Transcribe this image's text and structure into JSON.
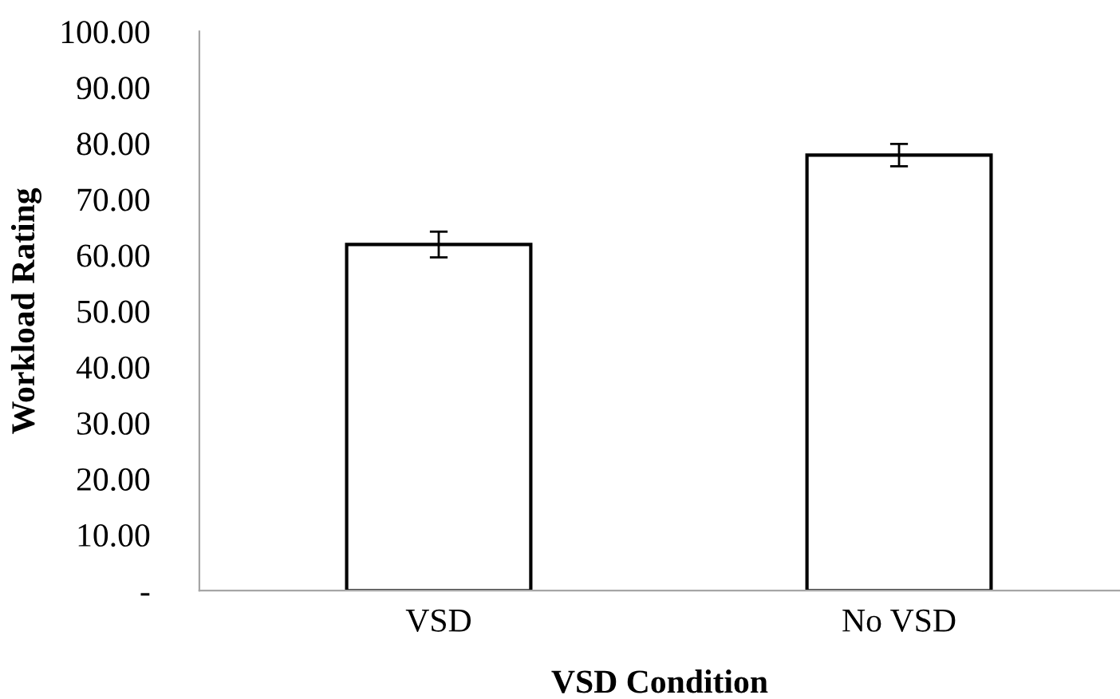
{
  "chart_data": {
    "type": "bar",
    "xlabel": "VSD Condition",
    "ylabel": "Workload Rating",
    "categories": [
      "VSD",
      "No VSD"
    ],
    "series": [
      {
        "color": "#ffffff",
        "values": [
          61.9,
          77.9
        ],
        "errors": [
          2.3,
          2.0
        ]
      }
    ],
    "ylim": [
      0,
      100
    ],
    "yticks": [
      {
        "value": 0,
        "label": "-"
      },
      {
        "value": 10,
        "label": "10.00"
      },
      {
        "value": 20,
        "label": "20.00"
      },
      {
        "value": 30,
        "label": "30.00"
      },
      {
        "value": 40,
        "label": "40.00"
      },
      {
        "value": 50,
        "label": "50.00"
      },
      {
        "value": 60,
        "label": "60.00"
      },
      {
        "value": 70,
        "label": "70.00"
      },
      {
        "value": 80,
        "label": "80.00"
      },
      {
        "value": 90,
        "label": "90.00"
      },
      {
        "value": 100,
        "label": "100.00"
      }
    ],
    "grid": false,
    "legend": false
  }
}
